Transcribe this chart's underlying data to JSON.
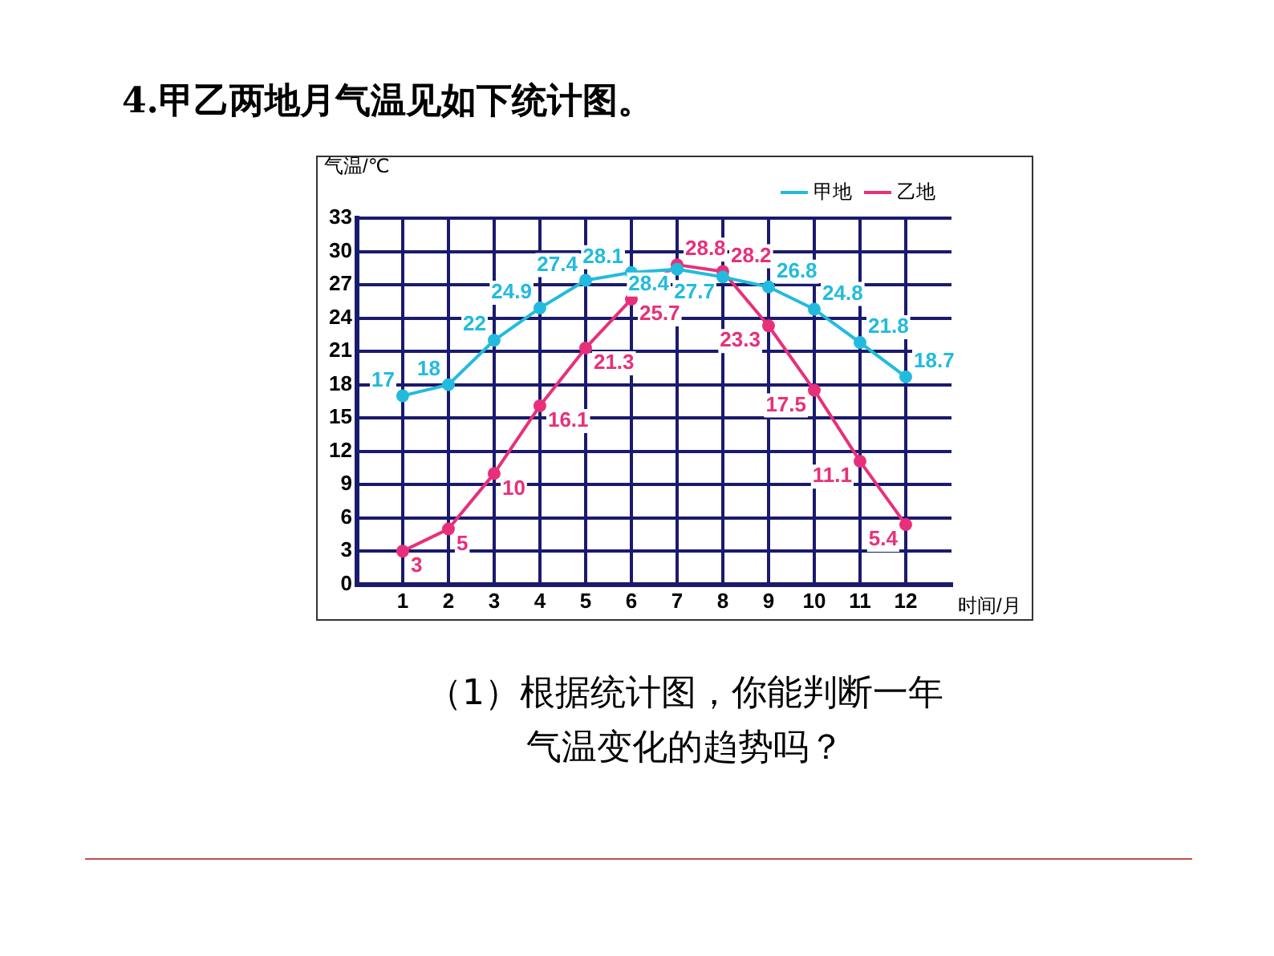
{
  "chart_data": {
    "type": "line",
    "title": "4.甲乙两地月气温见如下统计图。",
    "xlabel": "时间/月",
    "ylabel": "气温/℃",
    "x": [
      1,
      2,
      3,
      4,
      5,
      6,
      7,
      8,
      9,
      10,
      11,
      12
    ],
    "series": [
      {
        "name": "甲地",
        "color": "#22bbdd",
        "values": [
          17,
          18,
          22,
          24.9,
          27.4,
          28.1,
          28.4,
          27.7,
          26.8,
          24.8,
          21.8,
          18.7
        ]
      },
      {
        "name": "乙地",
        "color": "#e8307a",
        "values": [
          3,
          5,
          10,
          16.1,
          21.3,
          25.7,
          28.8,
          28.2,
          23.3,
          17.5,
          11.1,
          5.4
        ]
      }
    ],
    "xlim": [
      0,
      13
    ],
    "xticks": [
      1,
      2,
      3,
      4,
      5,
      6,
      7,
      8,
      9,
      10,
      11,
      12
    ],
    "ylim": [
      0,
      33
    ],
    "yticks": [
      0,
      3,
      6,
      9,
      12,
      15,
      18,
      21,
      24,
      27,
      30,
      33
    ],
    "grid": true,
    "legend": "top right",
    "marker": "circle",
    "line_style": "solid",
    "data_labels": true,
    "annotations": [
      "（1）根据统计图，你能判断一年气温变化的趋势吗？"
    ]
  }
}
